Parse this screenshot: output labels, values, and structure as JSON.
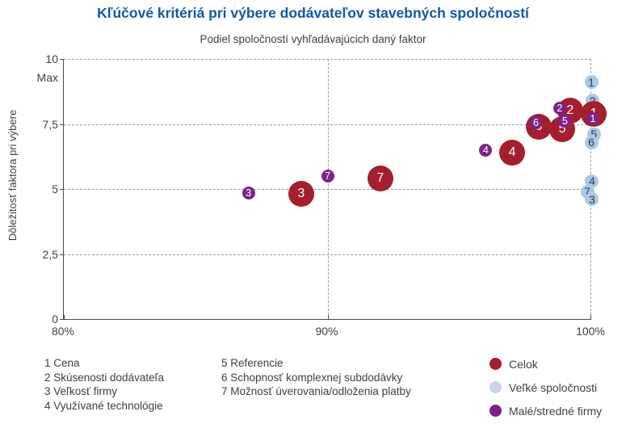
{
  "title_color": "#1257A8",
  "chart_data": {
    "type": "scatter",
    "title": "Kľúčové kritériá pri výbere dodávateľov stavebných spoločností",
    "subtitle": "Podiel spoločností vyhľadávajúcich daný faktor",
    "ylabel": "Dôležitosť faktora pri výbere",
    "xlim": [
      80,
      100
    ],
    "ylim": [
      0,
      10
    ],
    "grid": "dashed",
    "y_gridlines": [
      10,
      7.5,
      5,
      2.5
    ],
    "x_gridlines": [
      90,
      100
    ],
    "y_ticks": [
      {
        "label": "10",
        "value": 10
      },
      {
        "label": "Max",
        "value": 9.3
      },
      {
        "label": "7,5",
        "value": 7.5
      },
      {
        "label": "5",
        "value": 5
      },
      {
        "label": "2,5",
        "value": 2.5
      },
      {
        "label": "0",
        "value": 0
      }
    ],
    "x_ticks": [
      {
        "label": "80%",
        "value": 80
      },
      {
        "label": "90%",
        "value": 90
      },
      {
        "label": "100%",
        "value": 100
      }
    ],
    "series": [
      {
        "key": "velke",
        "name": "Veľké spoločnosti",
        "color": "#A8CAE8",
        "text_color": "#3b3b3b",
        "radius": 8.5,
        "font_size": 14,
        "points": [
          {
            "n": "1",
            "x": 100.0,
            "y": 9.1
          },
          {
            "n": "2",
            "x": 100.05,
            "y": 8.4
          },
          {
            "n": "5",
            "x": 100.1,
            "y": 7.1
          },
          {
            "n": "6",
            "x": 100.0,
            "y": 6.8
          },
          {
            "n": "4",
            "x": 100.03,
            "y": 5.3
          },
          {
            "n": "7",
            "x": 99.85,
            "y": 4.9
          },
          {
            "n": "3",
            "x": 100.03,
            "y": 4.6
          }
        ]
      },
      {
        "key": "celok",
        "name": "Celok",
        "color": "#A51E2D",
        "text_color": "#ffffff",
        "radius": 16,
        "font_size": 16,
        "points": [
          {
            "n": "3",
            "x": 89.0,
            "y": 4.8
          },
          {
            "n": "7",
            "x": 92.0,
            "y": 5.4
          },
          {
            "n": "4",
            "x": 97.0,
            "y": 6.4
          },
          {
            "n": "6",
            "x": 98.0,
            "y": 7.4
          },
          {
            "n": "5",
            "x": 98.9,
            "y": 7.3
          },
          {
            "n": "2",
            "x": 99.2,
            "y": 8.0
          },
          {
            "n": "1",
            "x": 100.1,
            "y": 7.9
          }
        ]
      },
      {
        "key": "male",
        "name": "Malé/stredné firmy",
        "color": "#7E2287",
        "text_color": "#ffffff",
        "radius": 8,
        "font_size": 12.5,
        "points": [
          {
            "n": "3",
            "x": 87.0,
            "y": 4.85
          },
          {
            "n": "7",
            "x": 90.0,
            "y": 5.5
          },
          {
            "n": "4",
            "x": 96.0,
            "y": 6.5
          },
          {
            "n": "6",
            "x": 97.9,
            "y": 7.55
          },
          {
            "n": "5",
            "x": 99.0,
            "y": 7.6
          },
          {
            "n": "2",
            "x": 98.8,
            "y": 8.1
          },
          {
            "n": "1",
            "x": 100.06,
            "y": 7.7
          }
        ]
      }
    ]
  },
  "criteria": {
    "column1": [
      {
        "num": "1",
        "label": "Cena"
      },
      {
        "num": "2",
        "label": "Skúsenosti dodávateľa"
      },
      {
        "num": "3",
        "label": "Veľkosť firmy"
      },
      {
        "num": "4",
        "label": "Využívané technológie"
      }
    ],
    "column2": [
      {
        "num": "5",
        "label": "Referencie"
      },
      {
        "num": "6",
        "label": "Schopnosť komplexnej subdodávky"
      },
      {
        "num": "7",
        "label": "Možnosť úverovania/odloženia platby"
      }
    ]
  },
  "series_legend": [
    {
      "name": "Celok",
      "swatch": "#A51E2D"
    },
    {
      "name": "Veľké spoločnosti",
      "swatch": "#C9D2E8"
    },
    {
      "name": "Malé/stredné firmy",
      "swatch": "#7E2287"
    }
  ]
}
